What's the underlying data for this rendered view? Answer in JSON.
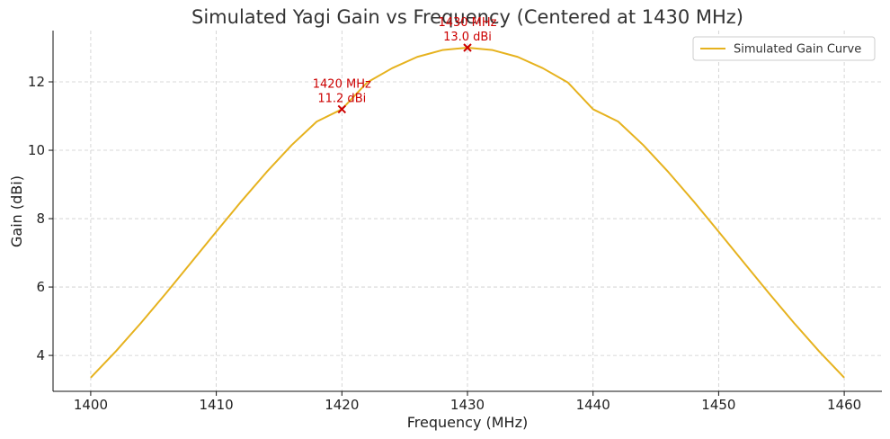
{
  "chart_data": {
    "type": "line",
    "title": "Simulated Yagi Gain vs Frequency (Centered at 1430 MHz)",
    "xlabel": "Frequency (MHz)",
    "ylabel": "Gain (dBi)",
    "xlim": [
      1397,
      1463
    ],
    "ylim": [
      2.95,
      13.5
    ],
    "xticks": [
      1400,
      1410,
      1420,
      1430,
      1440,
      1450,
      1460
    ],
    "yticks": [
      4,
      6,
      8,
      10,
      12
    ],
    "grid": true,
    "legend_position": "top-right",
    "series": [
      {
        "name": "Simulated Gain Curve",
        "color": "#e6b21e",
        "x": [
          1400,
          1402,
          1404,
          1406,
          1408,
          1410,
          1412,
          1414,
          1416,
          1418,
          1420,
          1422,
          1424,
          1426,
          1428,
          1430,
          1432,
          1434,
          1436,
          1438,
          1440,
          1442,
          1444,
          1446,
          1448,
          1450,
          1452,
          1454,
          1456,
          1458,
          1460
        ],
        "y": [
          3.35,
          4.12,
          4.95,
          5.82,
          6.72,
          7.62,
          8.51,
          9.36,
          10.15,
          10.84,
          11.2,
          11.98,
          12.4,
          12.73,
          12.93,
          13.0,
          12.93,
          12.73,
          12.4,
          11.98,
          11.2,
          10.84,
          10.15,
          9.36,
          8.51,
          7.62,
          6.72,
          5.82,
          4.95,
          4.12,
          3.35
        ]
      }
    ],
    "markers": [
      {
        "x": 1420,
        "y": 11.2,
        "color": "#cc0000",
        "label_line1": "1420 MHz",
        "label_line2": "11.2 dBi"
      },
      {
        "x": 1430,
        "y": 13.0,
        "color": "#cc0000",
        "label_line1": "1430 MHz",
        "label_line2": "13.0 dBi"
      }
    ]
  }
}
